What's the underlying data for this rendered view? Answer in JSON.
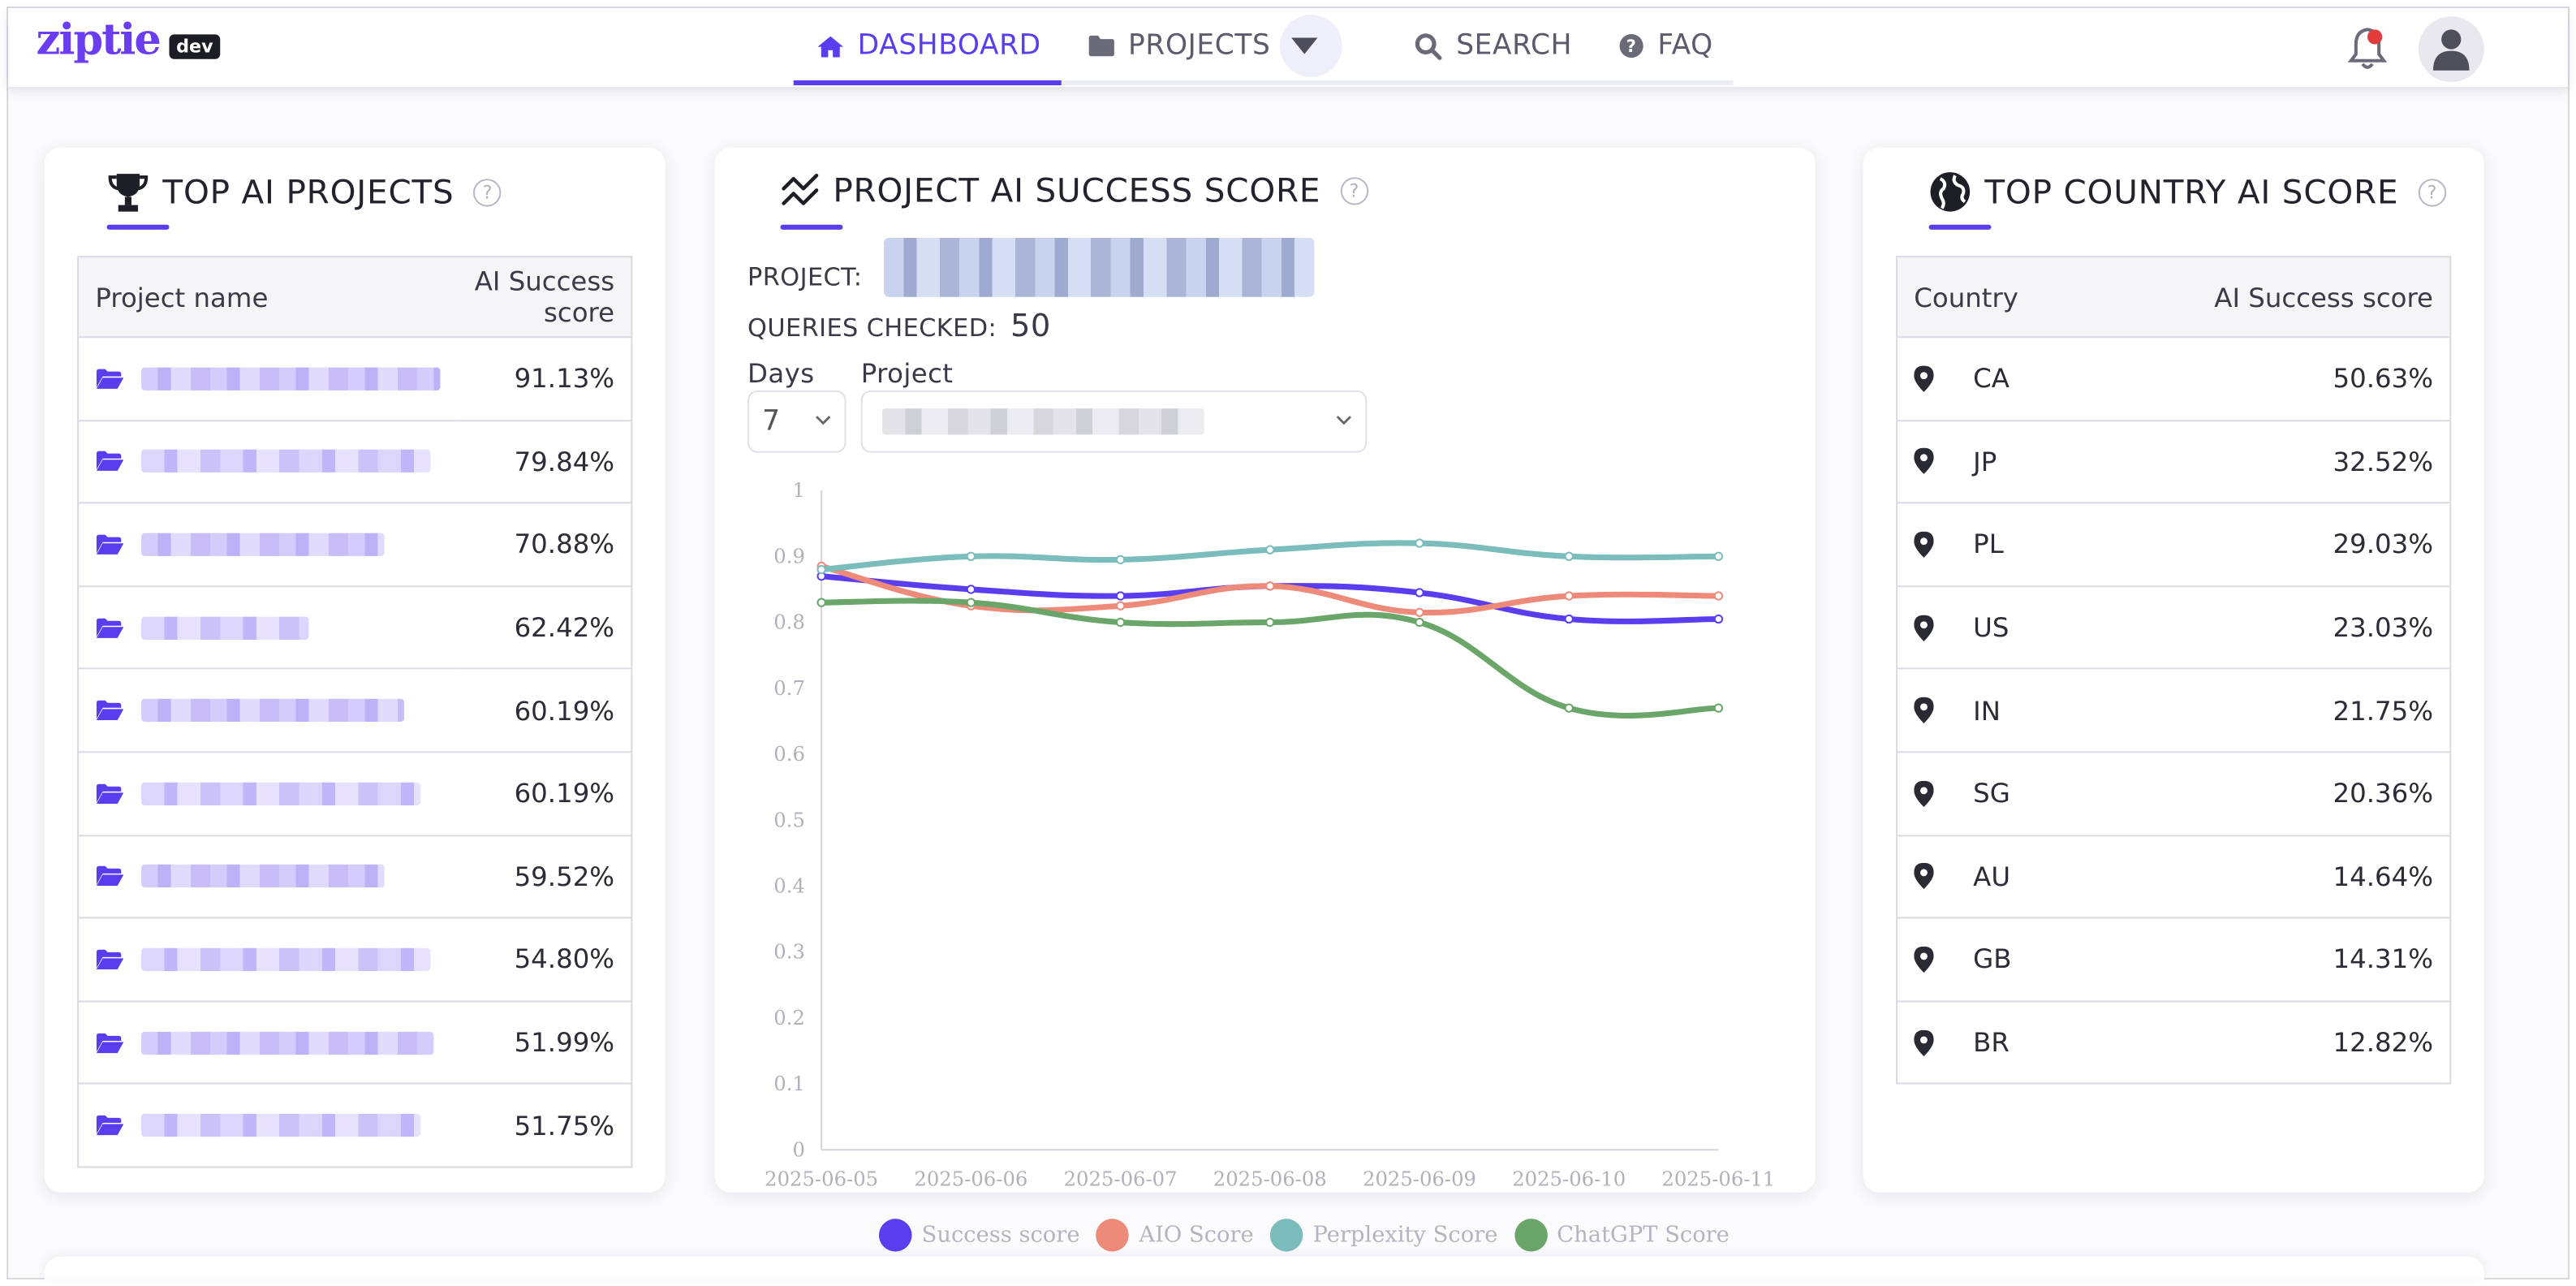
{
  "brand": {
    "name": "ziptie",
    "tag": "dev"
  },
  "nav": {
    "items": [
      {
        "label": "DASHBOARD",
        "icon": "home-icon",
        "active": true
      },
      {
        "label": "PROJECTS",
        "icon": "folder-icon",
        "active": false
      },
      {
        "label": "SEARCH",
        "icon": "search-icon",
        "active": false
      },
      {
        "label": "FAQ",
        "icon": "question-circle-icon",
        "active": false
      }
    ],
    "has_notifications": true
  },
  "top_projects": {
    "title": "TOP AI PROJECTS",
    "columns": [
      "Project name",
      "AI Success score"
    ],
    "rows": [
      {
        "name": "",
        "score": "91.13%"
      },
      {
        "name": "",
        "score": "79.84%"
      },
      {
        "name": "",
        "score": "70.88%"
      },
      {
        "name": "",
        "score": "62.42%"
      },
      {
        "name": "",
        "score": "60.19%"
      },
      {
        "name": "",
        "score": "60.19%"
      },
      {
        "name": "",
        "score": "59.52%"
      },
      {
        "name": "",
        "score": "54.80%"
      },
      {
        "name": "",
        "score": "51.99%"
      },
      {
        "name": "",
        "score": "51.75%"
      }
    ]
  },
  "success_score": {
    "title": "PROJECT AI SUCCESS SCORE",
    "project_label": "PROJECT:",
    "queries_label": "QUERIES CHECKED:",
    "queries_value": "50",
    "days_label": "Days",
    "days_value": "7",
    "project_select_label": "Project"
  },
  "top_country": {
    "title": "TOP COUNTRY AI SCORE",
    "columns": [
      "Country",
      "AI Success score"
    ],
    "rows": [
      {
        "code": "CA",
        "score": "50.63%"
      },
      {
        "code": "JP",
        "score": "32.52%"
      },
      {
        "code": "PL",
        "score": "29.03%"
      },
      {
        "code": "US",
        "score": "23.03%"
      },
      {
        "code": "IN",
        "score": "21.75%"
      },
      {
        "code": "SG",
        "score": "20.36%"
      },
      {
        "code": "AU",
        "score": "14.64%"
      },
      {
        "code": "GB",
        "score": "14.31%"
      },
      {
        "code": "BR",
        "score": "12.82%"
      }
    ]
  },
  "chart_data": {
    "type": "line",
    "x": [
      "2025-06-05",
      "2025-06-06",
      "2025-06-07",
      "2025-06-08",
      "2025-06-09",
      "2025-06-10",
      "2025-06-11"
    ],
    "ylim": [
      0,
      1
    ],
    "yticks": [
      "0",
      "0.1",
      "0.2",
      "0.3",
      "0.4",
      "0.5",
      "0.6",
      "0.7",
      "0.8",
      "0.9",
      "1"
    ],
    "legend_position": "bottom",
    "series": [
      {
        "name": "Success score",
        "color": "#5b3df0",
        "values": [
          0.87,
          0.85,
          0.84,
          0.855,
          0.845,
          0.805,
          0.805
        ]
      },
      {
        "name": "AIO Score",
        "color": "#ee8a7a",
        "values": [
          0.885,
          0.825,
          0.825,
          0.855,
          0.815,
          0.84,
          0.84
        ]
      },
      {
        "name": "Perplexity Score",
        "color": "#7bbcbc",
        "values": [
          0.88,
          0.9,
          0.895,
          0.91,
          0.92,
          0.9,
          0.9
        ]
      },
      {
        "name": "ChatGPT Score",
        "color": "#6aa56a",
        "values": [
          0.83,
          0.83,
          0.8,
          0.8,
          0.8,
          0.67,
          0.67
        ]
      }
    ]
  }
}
